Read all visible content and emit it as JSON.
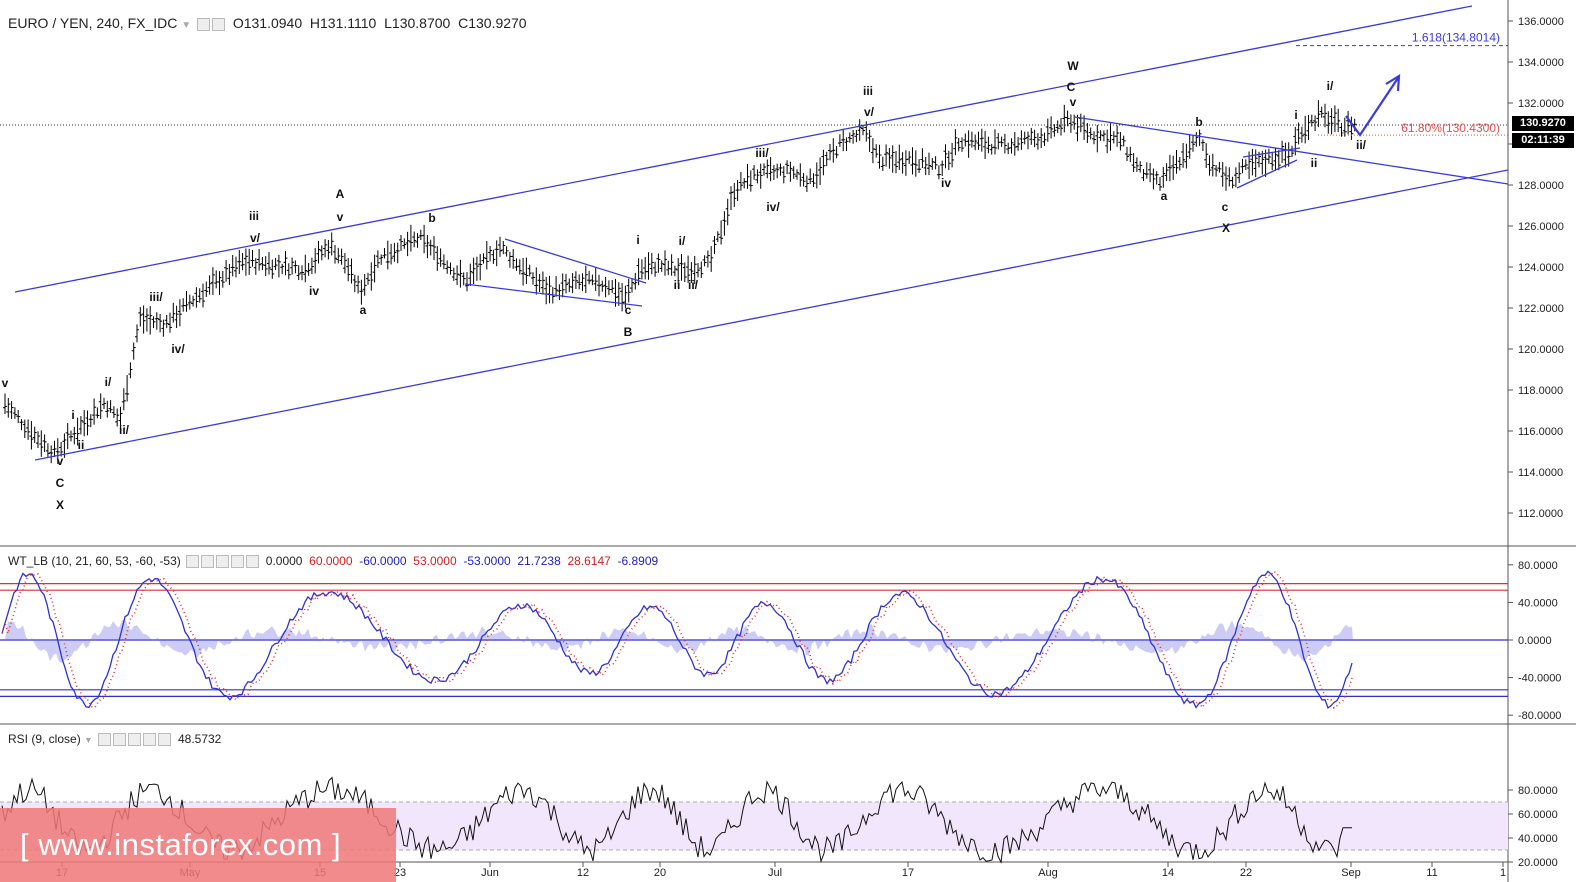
{
  "header": {
    "symbol": "EURO / YEN, 240, FX_IDC",
    "open": "O131.0940",
    "high": "H131.1110",
    "low": "L130.8700",
    "close": "C130.9270"
  },
  "wt_header": {
    "name": "WT_LB (10, 21, 60, 53, -60, -53)",
    "v0": "0.0000",
    "v1": "60.0000",
    "v2": "-60.0000",
    "v3": "53.0000",
    "v4": "-53.0000",
    "v5": "21.7238",
    "v6": "28.6147",
    "v7": "-6.8909"
  },
  "rsi_header": {
    "name": "RSI (9, close)",
    "value": "48.5732"
  },
  "last_price": "130.9270",
  "countdown": "02:11:39",
  "fib_upper": "1.618(134.8014)",
  "fib_lower": "61.80%(130.4300)",
  "watermark": "[ www.instaforex.com ]",
  "colors": {
    "channel": "#3a3adc",
    "candle": "#000000",
    "wt_red": "#e03030",
    "wt_blue": "#3030d0",
    "rsi_band": "#f1e6fb"
  },
  "chart_data": [
    {
      "type": "candlestick",
      "title": "EURO / YEN, 240, FX_IDC",
      "ylim": [
        111,
        136.5
      ],
      "y_ticks": [
        "136.0000",
        "134.0000",
        "132.0000",
        "130.0000",
        "128.0000",
        "126.0000",
        "124.0000",
        "122.0000",
        "120.0000",
        "118.0000",
        "116.0000",
        "114.0000",
        "112.0000"
      ],
      "x_ticks": [
        "17",
        "May",
        "15",
        "23",
        "Jun",
        "12",
        "20",
        "Jul",
        "17",
        "Aug",
        "14",
        "22",
        "Sep",
        "11",
        "1"
      ],
      "trend_path": [
        [
          0,
          117.6
        ],
        [
          0.03,
          116
        ],
        [
          0.055,
          114.9
        ],
        [
          0.08,
          116.2
        ],
        [
          0.105,
          117.4
        ],
        [
          0.12,
          116.5
        ],
        [
          0.14,
          121.5
        ],
        [
          0.165,
          121.2
        ],
        [
          0.19,
          122.3
        ],
        [
          0.22,
          123.4
        ],
        [
          0.245,
          124.3
        ],
        [
          0.275,
          124.1
        ],
        [
          0.305,
          123.9
        ],
        [
          0.33,
          125.1
        ],
        [
          0.345,
          124.2
        ],
        [
          0.36,
          122.8
        ],
        [
          0.38,
          124.5
        ],
        [
          0.42,
          125.4
        ],
        [
          0.44,
          124.5
        ],
        [
          0.465,
          123.3
        ],
        [
          0.5,
          125
        ],
        [
          0.525,
          123.8
        ],
        [
          0.55,
          122.8
        ],
        [
          0.585,
          123.3
        ],
        [
          0.61,
          123.1
        ],
        [
          0.625,
          122.4
        ],
        [
          0.64,
          123.9
        ],
        [
          0.66,
          124.1
        ],
        [
          0.68,
          123.8
        ],
        [
          0.71,
          124.2
        ],
        [
          0.735,
          127.8
        ],
        [
          0.755,
          128.5
        ],
        [
          0.79,
          128.7
        ],
        [
          0.81,
          128.2
        ],
        [
          0.84,
          130
        ],
        [
          0.865,
          130.6
        ],
        [
          0.88,
          129.2
        ],
        [
          0.91,
          129.3
        ],
        [
          0.94,
          128.8
        ],
        [
          0.96,
          130.2
        ],
        [
          1.0,
          129.9
        ],
        [
          1.02,
          130.1
        ],
        [
          1.045,
          130.4
        ],
        [
          1.07,
          131.2
        ],
        [
          1.09,
          130.5
        ],
        [
          1.12,
          130.2
        ],
        [
          1.14,
          128.7
        ],
        [
          1.16,
          128.1
        ],
        [
          1.18,
          129.2
        ],
        [
          1.2,
          130.3
        ],
        [
          1.21,
          129.1
        ],
        [
          1.23,
          128.2
        ],
        [
          1.245,
          128.8
        ],
        [
          1.27,
          129.3
        ],
        [
          1.29,
          129.5
        ],
        [
          1.3,
          130.6
        ],
        [
          1.32,
          131.4
        ],
        [
          1.34,
          130.9
        ],
        [
          1.355,
          130.9
        ]
      ],
      "annotations": [
        "v",
        "i",
        "ii",
        "i/",
        "ii/",
        "v",
        "C",
        "X",
        "iii/",
        "iv/",
        "iii",
        "v/",
        "iv",
        "A",
        "v",
        "a",
        "b",
        "c",
        "B",
        "i",
        "i/",
        "ii",
        "ii/",
        "iii/",
        "iv/",
        "iii",
        "v/",
        "iv",
        "W",
        "C",
        "v",
        "a",
        "b",
        "c",
        "X",
        "i",
        "ii",
        "i/",
        "ii/"
      ]
    },
    {
      "type": "line",
      "title": "WT_LB (10, 21, 60, 53, -60, -53)",
      "ylim": [
        -85,
        90
      ],
      "y_ticks": [
        "80.0000",
        "40.0000",
        "0.0000",
        "-40.0000",
        "-80.0000"
      ],
      "levels": [
        60,
        53,
        -53,
        -60
      ]
    },
    {
      "type": "line",
      "title": "RSI (9, close)",
      "ylim": [
        12,
        97
      ],
      "y_ticks": [
        "80.0000",
        "60.0000",
        "40.0000",
        "20.0000"
      ],
      "band": [
        30,
        70
      ],
      "last": 48.5732
    }
  ]
}
